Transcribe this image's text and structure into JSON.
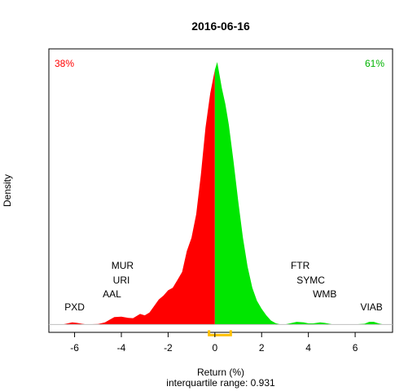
{
  "chart_data": {
    "type": "area",
    "title": "2016-06-16",
    "xlabel": "Return (%)",
    "subtitle": "interquartile range: 0.931",
    "ylabel": "Density",
    "xlim": [
      -7.1,
      7.6
    ],
    "ylim": [
      -0.03,
      1.05
    ],
    "x_ticks": [
      -6,
      -4,
      -2,
      0,
      2,
      4,
      6
    ],
    "x_tick_labels": [
      "-6",
      "-4",
      "-2",
      "0",
      "2",
      "4",
      "6"
    ],
    "pct_negative": "38%",
    "pct_positive": "61%",
    "colors": {
      "negative": "#ff0000",
      "positive": "#00e600",
      "iqr": "#ffc000",
      "baseline": "#bfbfbf"
    },
    "iqr": [
      -0.25,
      0.68
    ],
    "density": {
      "x": [
        -6.5,
        -6.3,
        -6.1,
        -5.9,
        -5.7,
        -5.5,
        -5.0,
        -4.7,
        -4.5,
        -4.3,
        -4.0,
        -3.7,
        -3.5,
        -3.2,
        -3.0,
        -2.8,
        -2.6,
        -2.4,
        -2.2,
        -2.0,
        -1.8,
        -1.6,
        -1.4,
        -1.2,
        -1.0,
        -0.8,
        -0.6,
        -0.4,
        -0.2,
        0.0,
        0.1,
        0.2,
        0.3,
        0.45,
        0.6,
        0.8,
        1.0,
        1.2,
        1.4,
        1.6,
        1.8,
        2.0,
        2.2,
        2.4,
        2.6,
        2.8,
        3.0,
        3.2,
        3.5,
        3.8,
        4.0,
        4.2,
        4.5,
        4.7,
        5.0,
        5.5,
        6.0,
        6.4,
        6.6,
        6.8,
        7.0,
        7.2,
        7.4
      ],
      "y": [
        0.0,
        0.004,
        0.008,
        0.006,
        0.003,
        0.0,
        0.002,
        0.008,
        0.018,
        0.028,
        0.03,
        0.025,
        0.024,
        0.04,
        0.035,
        0.045,
        0.07,
        0.095,
        0.11,
        0.13,
        0.14,
        0.17,
        0.2,
        0.28,
        0.33,
        0.42,
        0.57,
        0.75,
        0.88,
        0.97,
        1.0,
        0.95,
        0.9,
        0.84,
        0.76,
        0.62,
        0.47,
        0.33,
        0.22,
        0.14,
        0.09,
        0.06,
        0.035,
        0.015,
        0.005,
        0.0,
        0.0,
        0.004,
        0.01,
        0.008,
        0.004,
        0.004,
        0.008,
        0.006,
        0.001,
        0.0,
        0.0,
        0.003,
        0.01,
        0.01,
        0.004,
        0.0,
        0.0
      ]
    },
    "tickers": [
      {
        "label": "PXD",
        "x": -6.0,
        "row": 0
      },
      {
        "label": "AAL",
        "x": -4.4,
        "row": 1
      },
      {
        "label": "URI",
        "x": -4.0,
        "row": 2
      },
      {
        "label": "MUR",
        "x": -3.95,
        "row": 3
      },
      {
        "label": "FTR",
        "x": 3.65,
        "row": 3
      },
      {
        "label": "SYMC",
        "x": 4.1,
        "row": 2
      },
      {
        "label": "WMB",
        "x": 4.7,
        "row": 1
      },
      {
        "label": "VIAB",
        "x": 6.7,
        "row": 0
      }
    ]
  }
}
